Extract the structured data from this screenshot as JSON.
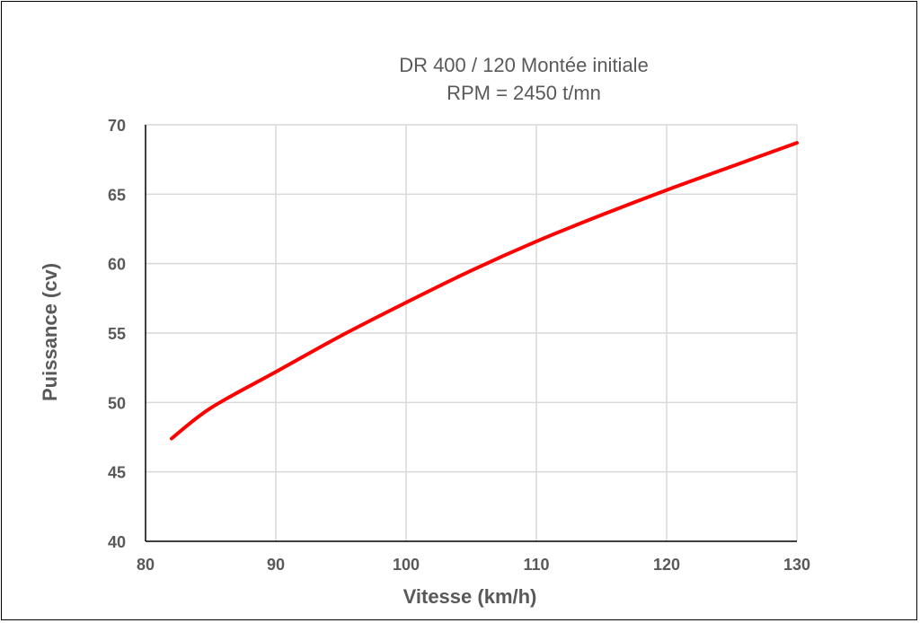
{
  "chart_data": {
    "type": "line",
    "title": "DR 400 / 120   Montée initiale",
    "subtitle": "RPM = 2450 t/mn",
    "xlabel": "Vitesse  (km/h)",
    "ylabel": "Puissance  (cv)",
    "xlim": [
      80,
      130
    ],
    "ylim": [
      40,
      70
    ],
    "x_ticks": [
      80,
      90,
      100,
      110,
      120,
      130
    ],
    "y_ticks": [
      40,
      45,
      50,
      55,
      60,
      65,
      70
    ],
    "grid": true,
    "legend": "none",
    "series": [
      {
        "color": "#ff0000",
        "x": [
          82,
          85,
          90,
          95,
          100,
          105,
          110,
          115,
          120,
          125,
          130
        ],
        "y": [
          47.4,
          49.6,
          52.2,
          54.8,
          57.2,
          59.5,
          61.6,
          63.5,
          65.3,
          67.0,
          68.7
        ]
      }
    ]
  }
}
